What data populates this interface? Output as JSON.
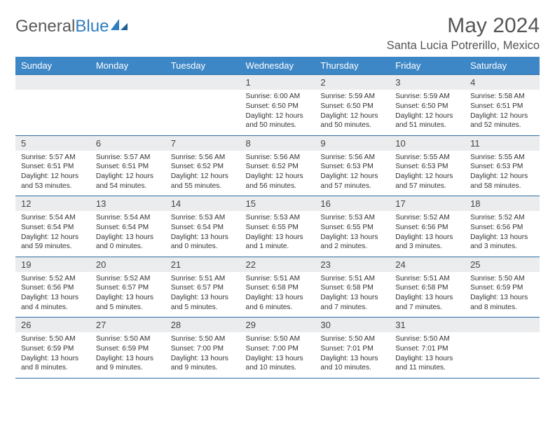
{
  "brand": {
    "part1": "General",
    "part2": "Blue"
  },
  "title": {
    "month": "May 2024",
    "location": "Santa Lucia Potrerillo, Mexico"
  },
  "colors": {
    "header_bg": "#3d87c6",
    "border": "#2e6da4",
    "daynum_bg": "#ebecee",
    "text": "#333333",
    "brand_gray": "#5a5a5a",
    "brand_blue": "#2f7ec0"
  },
  "weekday_labels": [
    "Sunday",
    "Monday",
    "Tuesday",
    "Wednesday",
    "Thursday",
    "Friday",
    "Saturday"
  ],
  "weeks": [
    [
      null,
      null,
      null,
      {
        "n": "1",
        "sunrise": "6:00 AM",
        "sunset": "6:50 PM",
        "dh": "12",
        "dm": "50"
      },
      {
        "n": "2",
        "sunrise": "5:59 AM",
        "sunset": "6:50 PM",
        "dh": "12",
        "dm": "50"
      },
      {
        "n": "3",
        "sunrise": "5:59 AM",
        "sunset": "6:50 PM",
        "dh": "12",
        "dm": "51"
      },
      {
        "n": "4",
        "sunrise": "5:58 AM",
        "sunset": "6:51 PM",
        "dh": "12",
        "dm": "52"
      }
    ],
    [
      {
        "n": "5",
        "sunrise": "5:57 AM",
        "sunset": "6:51 PM",
        "dh": "12",
        "dm": "53"
      },
      {
        "n": "6",
        "sunrise": "5:57 AM",
        "sunset": "6:51 PM",
        "dh": "12",
        "dm": "54"
      },
      {
        "n": "7",
        "sunrise": "5:56 AM",
        "sunset": "6:52 PM",
        "dh": "12",
        "dm": "55"
      },
      {
        "n": "8",
        "sunrise": "5:56 AM",
        "sunset": "6:52 PM",
        "dh": "12",
        "dm": "56"
      },
      {
        "n": "9",
        "sunrise": "5:56 AM",
        "sunset": "6:53 PM",
        "dh": "12",
        "dm": "57"
      },
      {
        "n": "10",
        "sunrise": "5:55 AM",
        "sunset": "6:53 PM",
        "dh": "12",
        "dm": "57"
      },
      {
        "n": "11",
        "sunrise": "5:55 AM",
        "sunset": "6:53 PM",
        "dh": "12",
        "dm": "58"
      }
    ],
    [
      {
        "n": "12",
        "sunrise": "5:54 AM",
        "sunset": "6:54 PM",
        "dh": "12",
        "dm": "59"
      },
      {
        "n": "13",
        "sunrise": "5:54 AM",
        "sunset": "6:54 PM",
        "dh": "13",
        "dm": "0"
      },
      {
        "n": "14",
        "sunrise": "5:53 AM",
        "sunset": "6:54 PM",
        "dh": "13",
        "dm": "0"
      },
      {
        "n": "15",
        "sunrise": "5:53 AM",
        "sunset": "6:55 PM",
        "dh": "13",
        "dm": "1"
      },
      {
        "n": "16",
        "sunrise": "5:53 AM",
        "sunset": "6:55 PM",
        "dh": "13",
        "dm": "2"
      },
      {
        "n": "17",
        "sunrise": "5:52 AM",
        "sunset": "6:56 PM",
        "dh": "13",
        "dm": "3"
      },
      {
        "n": "18",
        "sunrise": "5:52 AM",
        "sunset": "6:56 PM",
        "dh": "13",
        "dm": "3"
      }
    ],
    [
      {
        "n": "19",
        "sunrise": "5:52 AM",
        "sunset": "6:56 PM",
        "dh": "13",
        "dm": "4"
      },
      {
        "n": "20",
        "sunrise": "5:52 AM",
        "sunset": "6:57 PM",
        "dh": "13",
        "dm": "5"
      },
      {
        "n": "21",
        "sunrise": "5:51 AM",
        "sunset": "6:57 PM",
        "dh": "13",
        "dm": "5"
      },
      {
        "n": "22",
        "sunrise": "5:51 AM",
        "sunset": "6:58 PM",
        "dh": "13",
        "dm": "6"
      },
      {
        "n": "23",
        "sunrise": "5:51 AM",
        "sunset": "6:58 PM",
        "dh": "13",
        "dm": "7"
      },
      {
        "n": "24",
        "sunrise": "5:51 AM",
        "sunset": "6:58 PM",
        "dh": "13",
        "dm": "7"
      },
      {
        "n": "25",
        "sunrise": "5:50 AM",
        "sunset": "6:59 PM",
        "dh": "13",
        "dm": "8"
      }
    ],
    [
      {
        "n": "26",
        "sunrise": "5:50 AM",
        "sunset": "6:59 PM",
        "dh": "13",
        "dm": "8"
      },
      {
        "n": "27",
        "sunrise": "5:50 AM",
        "sunset": "6:59 PM",
        "dh": "13",
        "dm": "9"
      },
      {
        "n": "28",
        "sunrise": "5:50 AM",
        "sunset": "7:00 PM",
        "dh": "13",
        "dm": "9"
      },
      {
        "n": "29",
        "sunrise": "5:50 AM",
        "sunset": "7:00 PM",
        "dh": "13",
        "dm": "10"
      },
      {
        "n": "30",
        "sunrise": "5:50 AM",
        "sunset": "7:01 PM",
        "dh": "13",
        "dm": "10"
      },
      {
        "n": "31",
        "sunrise": "5:50 AM",
        "sunset": "7:01 PM",
        "dh": "13",
        "dm": "11"
      },
      null
    ]
  ],
  "labels": {
    "sunrise": "Sunrise:",
    "sunset": "Sunset:",
    "daylight": "Daylight:",
    "hours": "hours",
    "and": "and",
    "minutes": "minutes."
  }
}
